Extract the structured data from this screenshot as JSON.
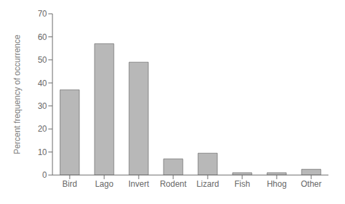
{
  "chart_data": {
    "type": "bar",
    "categories": [
      "Bird",
      "Lago",
      "Invert",
      "Rodent",
      "Lizard",
      "Fish",
      "Hhog",
      "Other"
    ],
    "values": [
      37.0,
      57.0,
      49.0,
      7.0,
      9.5,
      1.0,
      1.0,
      2.5
    ],
    "color": "#b8b8b8",
    "ylabel": "Percent frequency of occurrence",
    "ylim": [
      0,
      70
    ],
    "yticks": [
      0,
      10,
      20,
      30,
      40,
      50,
      60,
      70
    ],
    "grid": false
  }
}
